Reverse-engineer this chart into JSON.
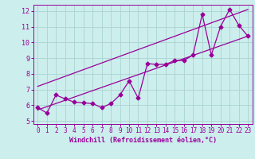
{
  "title": "",
  "xlabel": "Windchill (Refroidissement éolien,°C)",
  "ylabel": "",
  "bg_color": "#cceeed",
  "grid_color": "#aad4d0",
  "line_color": "#990099",
  "xlim": [
    -0.5,
    23.5
  ],
  "ylim": [
    4.8,
    12.4
  ],
  "xticks": [
    0,
    1,
    2,
    3,
    4,
    5,
    6,
    7,
    8,
    9,
    10,
    11,
    12,
    13,
    14,
    15,
    16,
    17,
    18,
    19,
    20,
    21,
    22,
    23
  ],
  "yticks": [
    5,
    6,
    7,
    8,
    9,
    10,
    11,
    12
  ],
  "line1_x": [
    0,
    1,
    2,
    3,
    4,
    5,
    6,
    7,
    8,
    9,
    10,
    11,
    12,
    13,
    14,
    15,
    16,
    17,
    18,
    19,
    20,
    21,
    22,
    23
  ],
  "line1_y": [
    5.85,
    5.5,
    6.65,
    6.4,
    6.2,
    6.15,
    6.1,
    5.85,
    6.1,
    6.65,
    7.55,
    6.45,
    8.65,
    8.6,
    8.6,
    8.85,
    8.85,
    9.2,
    11.8,
    9.2,
    11.0,
    12.1,
    11.1,
    10.4
  ],
  "line2_x": [
    0,
    23
  ],
  "line2_y": [
    5.7,
    10.4
  ],
  "line3_x": [
    0,
    23
  ],
  "line3_y": [
    7.2,
    12.1
  ],
  "marker": "D",
  "markersize": 2.5,
  "linewidth": 0.9,
  "tick_fontsize": 5.5,
  "xlabel_fontsize": 6.0
}
